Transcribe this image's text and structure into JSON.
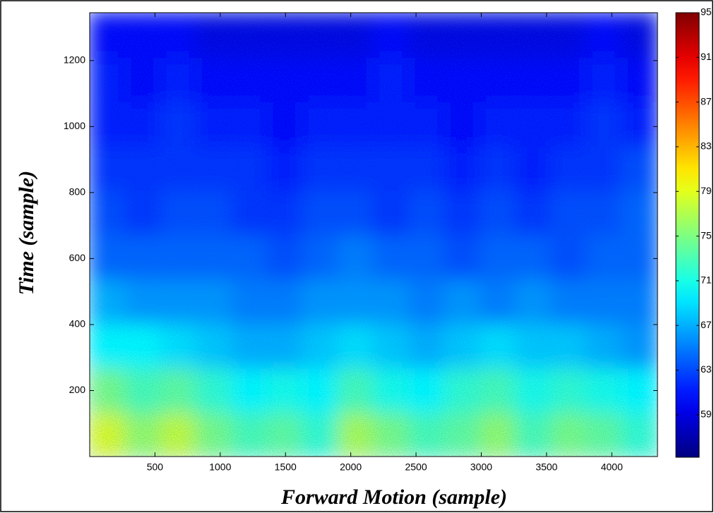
{
  "chart_data": {
    "type": "heatmap",
    "xlabel": "Forward Motion  (sample)",
    "ylabel": "Time  (sample)",
    "xlim": [
      0,
      4350
    ],
    "xticks": [
      500,
      1000,
      1500,
      2000,
      2500,
      3000,
      3500,
      4000
    ],
    "ylim": [
      0,
      1345
    ],
    "yticks": [
      200,
      400,
      600,
      800,
      1000,
      1200
    ],
    "colormap": "jet",
    "clim": [
      55.2,
      95
    ],
    "cticks": [
      59,
      63,
      67,
      71,
      75,
      79,
      83,
      87,
      91,
      95
    ],
    "z": [
      [
        79,
        76,
        78,
        75,
        73,
        74,
        72,
        77,
        75,
        73,
        74,
        76,
        73,
        75,
        74,
        72
      ],
      [
        75,
        73,
        74,
        72,
        70,
        71,
        70,
        73,
        71,
        70,
        72,
        73,
        71,
        72,
        71,
        70
      ],
      [
        70,
        70,
        69,
        68,
        67,
        67,
        68,
        69,
        68,
        67,
        68,
        69,
        68,
        68,
        67,
        66
      ],
      [
        67,
        66,
        66,
        66,
        65,
        65,
        66,
        66,
        66,
        65,
        66,
        65,
        66,
        65,
        65,
        65
      ],
      [
        64,
        64,
        64,
        64,
        64,
        63,
        64,
        65,
        64,
        64,
        63,
        64,
        64,
        63,
        64,
        64
      ],
      [
        63,
        62,
        63,
        63,
        62,
        62,
        63,
        63,
        62,
        63,
        62,
        63,
        62,
        63,
        63,
        64
      ],
      [
        62,
        62,
        62,
        62,
        62,
        61,
        62,
        62,
        62,
        62,
        61,
        62,
        61,
        62,
        62,
        63
      ],
      [
        61,
        61,
        62,
        61,
        61,
        60,
        61,
        61,
        61,
        61,
        60,
        61,
        61,
        61,
        62,
        61
      ],
      [
        61,
        60,
        61,
        60,
        60,
        60,
        60,
        60,
        61,
        60,
        60,
        60,
        60,
        60,
        61,
        60
      ],
      [
        60,
        60,
        60,
        59,
        59,
        59,
        59,
        59,
        60,
        59,
        59,
        59,
        59,
        59,
        60,
        59
      ]
    ]
  }
}
